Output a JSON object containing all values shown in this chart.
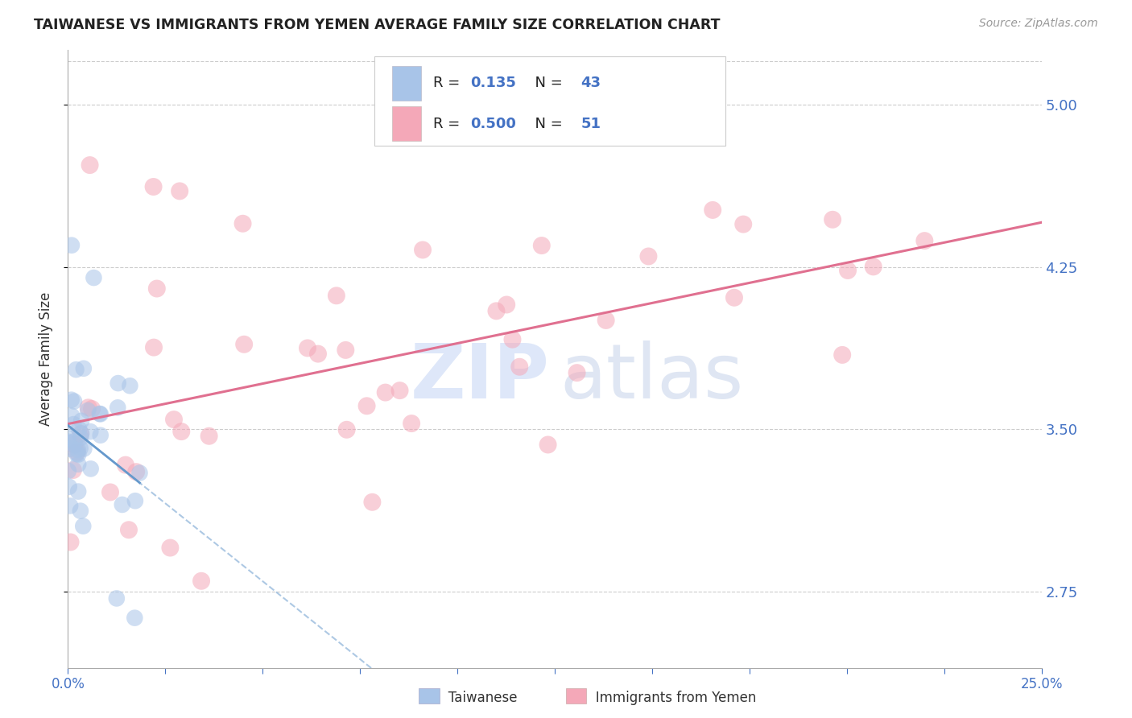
{
  "title": "TAIWANESE VS IMMIGRANTS FROM YEMEN AVERAGE FAMILY SIZE CORRELATION CHART",
  "source": "Source: ZipAtlas.com",
  "ylabel": "Average Family Size",
  "yticks": [
    2.75,
    3.5,
    4.25,
    5.0
  ],
  "xlim": [
    0.0,
    25.0
  ],
  "ylim": [
    2.4,
    5.25
  ],
  "taiwanese_R": 0.135,
  "taiwanese_N": 43,
  "yemen_R": 0.5,
  "yemen_N": 51,
  "taiwanese_color": "#a8c4e8",
  "yemen_color": "#f4a8b8",
  "trendline_taiwan_color": "#6699cc",
  "trendline_taiwan_dash_color": "#99bbdd",
  "trendline_yemen_color": "#e07090",
  "watermark_zip_color": "#c8d8f0",
  "watermark_atlas_color": "#b8c8e8",
  "seed": 12345
}
